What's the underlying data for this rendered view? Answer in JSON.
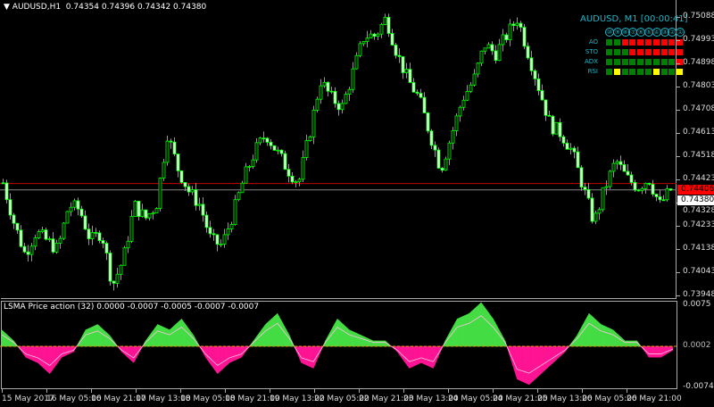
{
  "header": {
    "symbol": "AUDUSD,H1",
    "ohlc": "0.74354 0.74396 0.74342 0.74380"
  },
  "colors": {
    "bull": "#00ff00",
    "bear": "#00ff00",
    "osc_pos": "#44dd44",
    "osc_neg": "#ff1493",
    "ask_line": "#c00000",
    "bid_line": "#888888",
    "dash_text": "#1fb5c8",
    "green": "#008000",
    "red": "#ff0000",
    "yellow": "#ffff00"
  },
  "price_axis": [
    "0.75088",
    "0.74993",
    "0.74898",
    "0.74803",
    "0.74708",
    "0.74613",
    "0.74518",
    "0.74423",
    "0.74328",
    "0.74233",
    "0.74138",
    "0.74043",
    "0.73948"
  ],
  "ask_label": "0.74406",
  "bid_label": "0.74380",
  "time_axis": [
    "15 May 2017",
    "16 May 05:00",
    "16 May 21:00",
    "17 May 13:00",
    "18 May 05:00",
    "18 May 21:00",
    "19 May 13:00",
    "22 May 05:00",
    "22 May 21:00",
    "23 May 13:00",
    "24 May 05:00",
    "24 May 21:00",
    "25 May 13:00",
    "26 May 05:00",
    "26 May 21:00"
  ],
  "indicator": {
    "title": "LSMA Price action (32) 0.0000 -0.0007 -0.0005 -0.0007 -0.0007",
    "axis": [
      "0.0075",
      "0.0002",
      "-0.0074"
    ]
  },
  "dashboard": {
    "title": "AUDUSD, M1 [00:00:41]",
    "headers": [
      "⑩",
      "⑨",
      "⑧",
      "⑦",
      "⑥",
      "⑤",
      "④",
      "③",
      "②",
      "①"
    ],
    "rows": [
      {
        "label": "AO",
        "cells": [
          "g",
          "g",
          "r",
          "r",
          "r",
          "r",
          "r",
          "r",
          "r",
          "r"
        ]
      },
      {
        "label": "STO",
        "cells": [
          "g",
          "g",
          "g",
          "r",
          "r",
          "r",
          "r",
          "r",
          "r",
          "r"
        ]
      },
      {
        "label": "ADX",
        "cells": [
          "g",
          "g",
          "g",
          "g",
          "g",
          "g",
          "g",
          "g",
          "g",
          "r"
        ]
      },
      {
        "label": "RSI",
        "cells": [
          "g",
          "y",
          "g",
          "g",
          "g",
          "g",
          "y",
          "g",
          "g",
          "y"
        ]
      }
    ]
  },
  "chart_data": [
    {
      "type": "candlestick",
      "title": "AUDUSD,H1",
      "ylim": [
        0.7393,
        0.7513
      ],
      "bid": 0.7438,
      "ask": 0.74406,
      "close_path": [
        0.74409,
        0.74245,
        0.74117,
        0.74208,
        0.74172,
        0.74135,
        0.74318,
        0.74299,
        0.74172,
        0.74208,
        0.73989,
        0.74099,
        0.74318,
        0.74263,
        0.74318,
        0.7461,
        0.74464,
        0.74372,
        0.74318,
        0.74172,
        0.74153,
        0.74281,
        0.74427,
        0.74537,
        0.7461,
        0.74537,
        0.74464,
        0.74409,
        0.7461,
        0.74829,
        0.74756,
        0.74719,
        0.74865,
        0.75011,
        0.75011,
        0.75084,
        0.74938,
        0.74829,
        0.74756,
        0.7461,
        0.74464,
        0.7461,
        0.74756,
        0.74829,
        0.74975,
        0.74938,
        0.75011,
        0.75084,
        0.74938,
        0.74792,
        0.74646,
        0.7461,
        0.74537,
        0.74391,
        0.74245,
        0.74391,
        0.745,
        0.74427,
        0.74391,
        0.74427,
        0.74318,
        0.7438
      ]
    },
    {
      "type": "area",
      "title": "LSMA Price action (32)",
      "ylim": [
        -0.0074,
        0.0075
      ],
      "values": [
        0.003,
        0.001,
        -0.002,
        -0.003,
        -0.005,
        -0.002,
        -0.001,
        0.003,
        0.004,
        0.002,
        -0.001,
        -0.003,
        0.001,
        0.004,
        0.003,
        0.005,
        0.002,
        -0.002,
        -0.005,
        -0.003,
        -0.002,
        0.001,
        0.004,
        0.006,
        0.002,
        -0.003,
        -0.004,
        0.001,
        0.005,
        0.003,
        0.002,
        0.001,
        0.001,
        -0.001,
        -0.004,
        -0.003,
        -0.004,
        0.001,
        0.005,
        0.006,
        0.008,
        0.005,
        0.001,
        -0.006,
        -0.007,
        -0.005,
        -0.003,
        -0.001,
        0.002,
        0.006,
        0.004,
        0.003,
        0.001,
        0.001,
        -0.002,
        -0.002,
        -0.0007
      ]
    }
  ]
}
